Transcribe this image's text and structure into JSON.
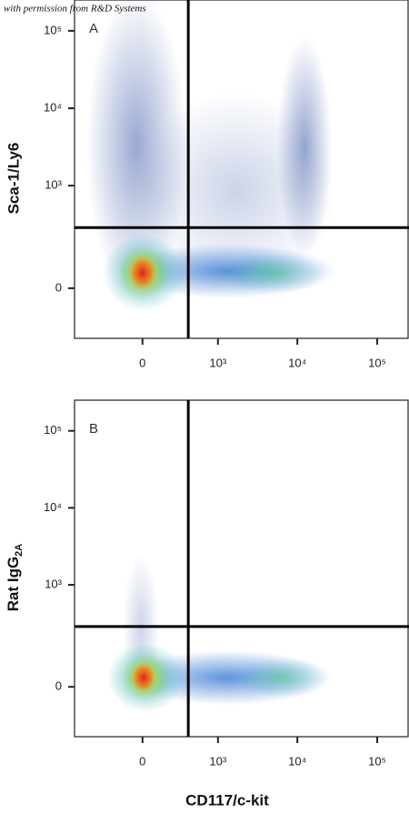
{
  "watermark": "with permission from R&D Systems",
  "chart_data": [
    {
      "type": "scatter",
      "panel": "A",
      "ylabel": "Sca-1/Ly6",
      "scale": "biexponential",
      "xlim": [
        -800,
        250000
      ],
      "xticks": [
        0,
        {
          "value": 1000,
          "label": "10³"
        },
        {
          "value": 10000,
          "label": "10⁴"
        },
        {
          "value": 100000,
          "label": "10⁵"
        }
      ],
      "ylim": [
        -200,
        250000
      ],
      "yticks": [
        0,
        {
          "value": 1000,
          "label": "10³"
        },
        {
          "value": 10000,
          "label": "10⁴"
        },
        {
          "value": 100000,
          "label": "10⁵"
        }
      ],
      "gates": {
        "x": 400,
        "y": 280
      }
    },
    {
      "type": "scatter",
      "panel": "B",
      "ylabel": {
        "text": "Rat IgG",
        "subscript": "2A"
      },
      "xlabel": "CD117/c-kit",
      "scale": "biexponential",
      "xlim": [
        -800,
        250000
      ],
      "xticks": [
        0,
        {
          "value": 1000,
          "label": "10³"
        },
        {
          "value": 10000,
          "label": "10⁴"
        },
        {
          "value": 100000,
          "label": "10⁵"
        }
      ],
      "ylim": [
        -200,
        250000
      ],
      "yticks": [
        0,
        {
          "value": 1000,
          "label": "10³"
        },
        {
          "value": 10000,
          "label": "10⁴"
        },
        {
          "value": 100000,
          "label": "10⁵"
        }
      ],
      "gates": {
        "x": 400,
        "y": 280
      }
    }
  ]
}
